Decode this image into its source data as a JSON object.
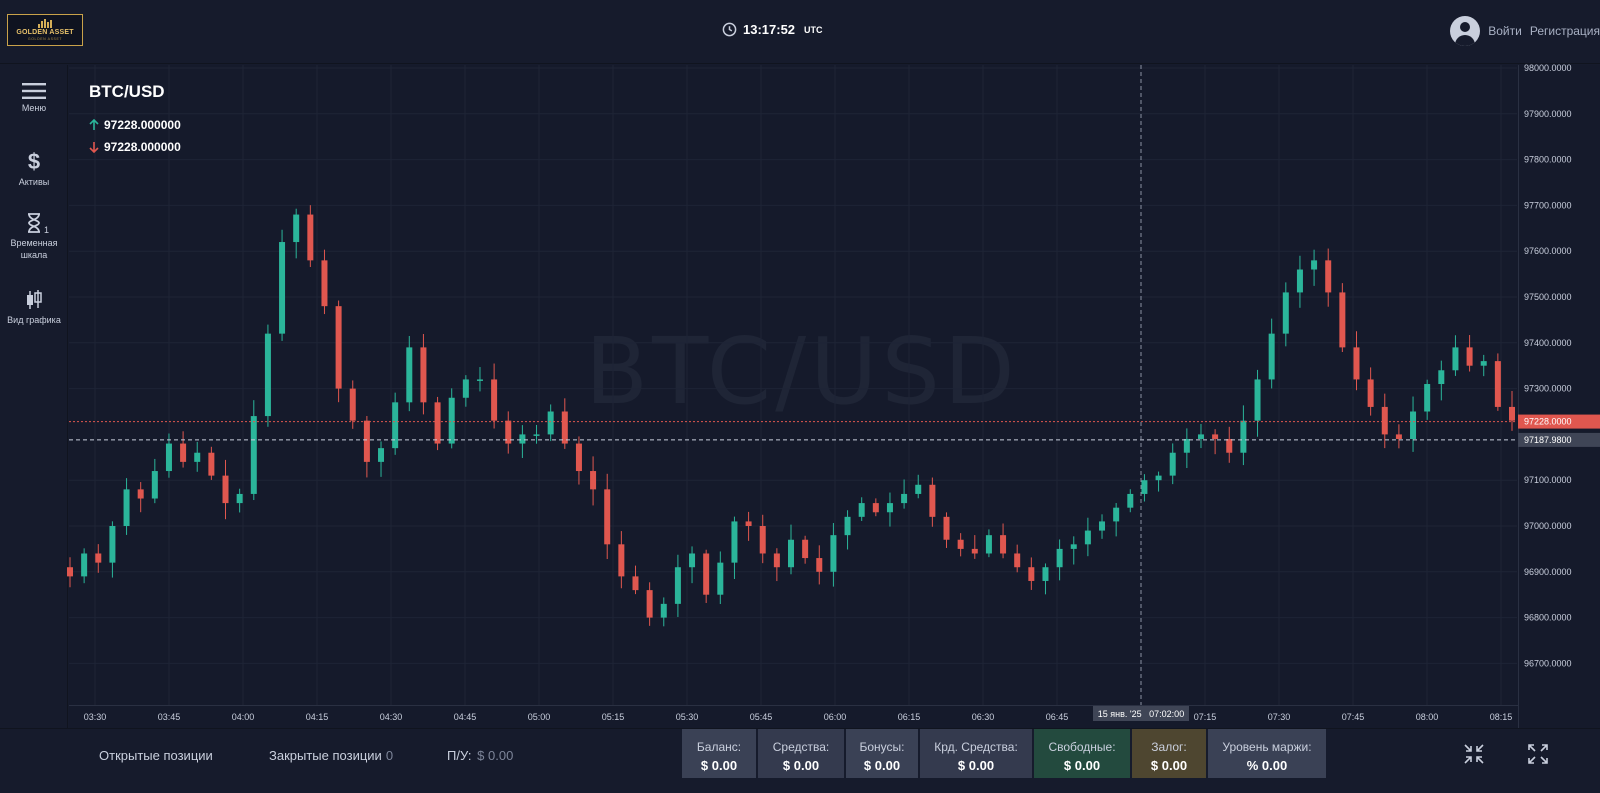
{
  "header": {
    "logo_name": "GOLDEN ASSET",
    "logo_sub": "GOLDEN ASSET",
    "time": "13:17:52",
    "timezone": "UTC",
    "login": "Войти",
    "register": "Регистрация"
  },
  "sidebar": {
    "menu": "Меню",
    "assets": "Активы",
    "timeframe": "Временная шкала",
    "timeframe_badge": "1",
    "chart_view": "Вид графика"
  },
  "chart": {
    "symbol": "BTC/USD",
    "watermark": "BTC/USD",
    "ask": "97228.000000",
    "bid": "97228.000000",
    "current_price_label": "97228.0000",
    "crosshair_price_label": "97187.9800",
    "crosshair_time_label": "15 янв. '25   07:02:00",
    "up_color": "#2bb59a",
    "down_color": "#e0574f"
  },
  "chart_data": {
    "type": "candlestick",
    "price_ticks": [
      "98000.0000",
      "97900.0000",
      "97800.0000",
      "97700.0000",
      "97600.0000",
      "97500.0000",
      "97400.0000",
      "97300.0000",
      "97100.0000",
      "97000.0000",
      "96900.0000",
      "96800.0000",
      "96700.0000"
    ],
    "time_ticks": [
      "03:30",
      "03:45",
      "04:00",
      "04:15",
      "04:30",
      "04:45",
      "05:00",
      "05:15",
      "05:30",
      "05:45",
      "06:00",
      "06:15",
      "06:30",
      "06:45",
      "07:15",
      "07:30",
      "07:45",
      "08:00",
      "08:15"
    ],
    "ylim": [
      96650,
      98000
    ],
    "current_price": 97228,
    "crosshair_price": 97187.98,
    "closes": [
      96890,
      96940,
      96920,
      97000,
      97080,
      97060,
      97120,
      97180,
      97140,
      97160,
      97110,
      97050,
      97070,
      97240,
      97420,
      97620,
      97680,
      97580,
      97480,
      97300,
      97230,
      97140,
      97170,
      97270,
      97390,
      97270,
      97180,
      97280,
      97320,
      97320,
      97230,
      97180,
      97200,
      97200,
      97250,
      97180,
      97120,
      97080,
      96960,
      96890,
      96860,
      96800,
      96830,
      96910,
      96940,
      96850,
      96920,
      97010,
      97000,
      96940,
      96910,
      96970,
      96930,
      96900,
      96980,
      97020,
      97050,
      97030,
      97050,
      97070,
      97090,
      97020,
      96970,
      96950,
      96940,
      96980,
      96940,
      96910,
      96880,
      96910,
      96950,
      96960,
      96990,
      97010,
      97040,
      97070,
      97100,
      97110,
      97160,
      97190,
      97200,
      97190,
      97160,
      97230,
      97320,
      97420,
      97510,
      97560,
      97580,
      97510,
      97390,
      97320,
      97260,
      97200,
      97190,
      97250,
      97310,
      97340,
      97390,
      97350,
      97360,
      97260,
      97230
    ]
  },
  "footer": {
    "open_positions": "Открытые позиции",
    "closed_positions": "Закрытые позиции",
    "closed_count": "0",
    "pnl_label": "П/У:",
    "pnl_value": "$ 0.00",
    "stats": [
      {
        "label": "Баланс:",
        "value": "$ 0.00"
      },
      {
        "label": "Средства:",
        "value": "$ 0.00"
      },
      {
        "label": "Бонусы:",
        "value": "$ 0.00"
      },
      {
        "label": "Крд. Средства:",
        "value": "$ 0.00"
      },
      {
        "label": "Свободные:",
        "value": "$ 0.00"
      },
      {
        "label": "Залог:",
        "value": "$ 0.00"
      },
      {
        "label": "Уровень маржи:",
        "value": "% 0.00"
      }
    ]
  }
}
